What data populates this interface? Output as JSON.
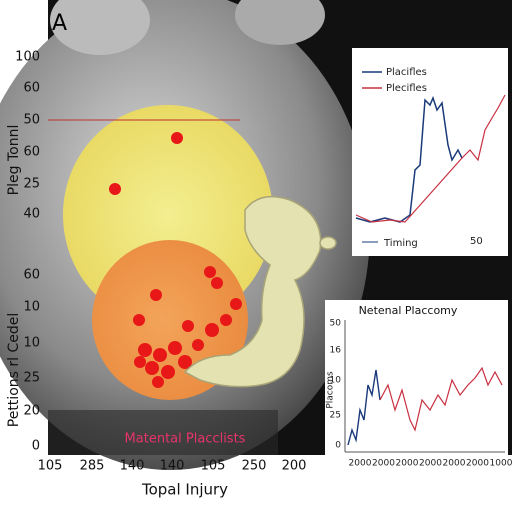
{
  "panel_letter": "A",
  "main": {
    "y_labels": [
      "100",
      "60",
      "50",
      "60",
      "25",
      "40",
      "60",
      "10",
      "10",
      "25",
      "20",
      "0"
    ],
    "y_title_top": "Pleg Tonnl",
    "y_title_bottom": "Pettions rl Cedel",
    "x_labels": [
      "105",
      "285",
      "140",
      "140",
      "105",
      "250",
      "200"
    ],
    "x_title": "Topal Injury",
    "caption": "Matental Placclists"
  },
  "inset_top": {
    "legend": [
      "Placifles",
      "Plecifles"
    ],
    "x_label": "Timing",
    "x_tick": "50"
  },
  "inset_bottom": {
    "title": "Netenal Placcomy",
    "y_title": "Placoms",
    "y_labels": [
      "50",
      "16",
      "10",
      "25",
      "0"
    ],
    "x_labels": [
      "2000",
      "2000",
      "2000",
      "2000",
      "2000",
      "2000",
      "1000"
    ]
  }
}
